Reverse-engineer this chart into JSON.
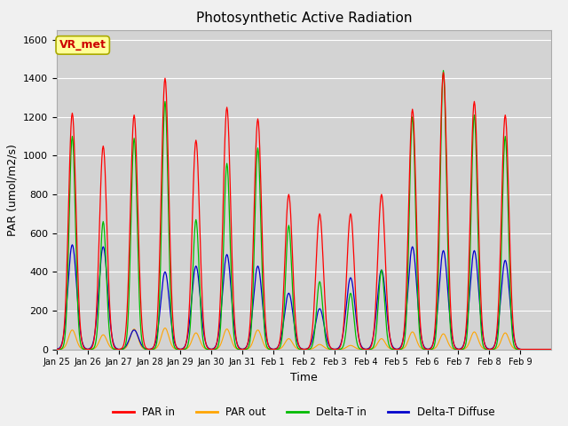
{
  "title": "Photosynthetic Active Radiation",
  "xlabel": "Time",
  "ylabel": "PAR (umol/m2/s)",
  "legend_labels": [
    "PAR in",
    "PAR out",
    "Delta-T in",
    "Delta-T Diffuse"
  ],
  "line_colors": [
    "#ff0000",
    "#ffa500",
    "#00bb00",
    "#0000cc"
  ],
  "fig_facecolor": "#f0f0f0",
  "ax_facecolor": "#d3d3d3",
  "ylim": [
    0,
    1650
  ],
  "yticks": [
    0,
    200,
    400,
    600,
    800,
    1000,
    1200,
    1400,
    1600
  ],
  "xtick_labels": [
    "Jan 25",
    "Jan 26",
    "Jan 27",
    "Jan 28",
    "Jan 29",
    "Jan 30",
    "Jan 31",
    "Feb 1",
    "Feb 2",
    "Feb 3",
    "Feb 4",
    "Feb 5",
    "Feb 6",
    "Feb 7",
    "Feb 8",
    "Feb 9"
  ],
  "annotation_text": "VR_met",
  "annotation_facecolor": "#ffff99",
  "annotation_edgecolor": "#aaaa00",
  "annotation_textcolor": "#cc0000",
  "n_days": 16,
  "pts_per_day": 48,
  "day_peaks_par_in": [
    1220,
    1050,
    1210,
    1400,
    1080,
    1250,
    1190,
    800,
    700,
    700,
    800,
    1240,
    1430,
    1280,
    1210,
    0
  ],
  "day_peaks_delta_t_in": [
    1100,
    660,
    1090,
    1280,
    670,
    960,
    1040,
    640,
    350,
    290,
    410,
    1200,
    1440,
    1210,
    1100,
    0
  ],
  "day_peaks_delta_t_diff": [
    540,
    530,
    100,
    400,
    430,
    490,
    430,
    290,
    210,
    370,
    410,
    530,
    510,
    510,
    460,
    0
  ],
  "day_peaks_par_out": [
    100,
    75,
    105,
    110,
    85,
    105,
    100,
    55,
    25,
    20,
    55,
    90,
    80,
    90,
    85,
    0
  ]
}
